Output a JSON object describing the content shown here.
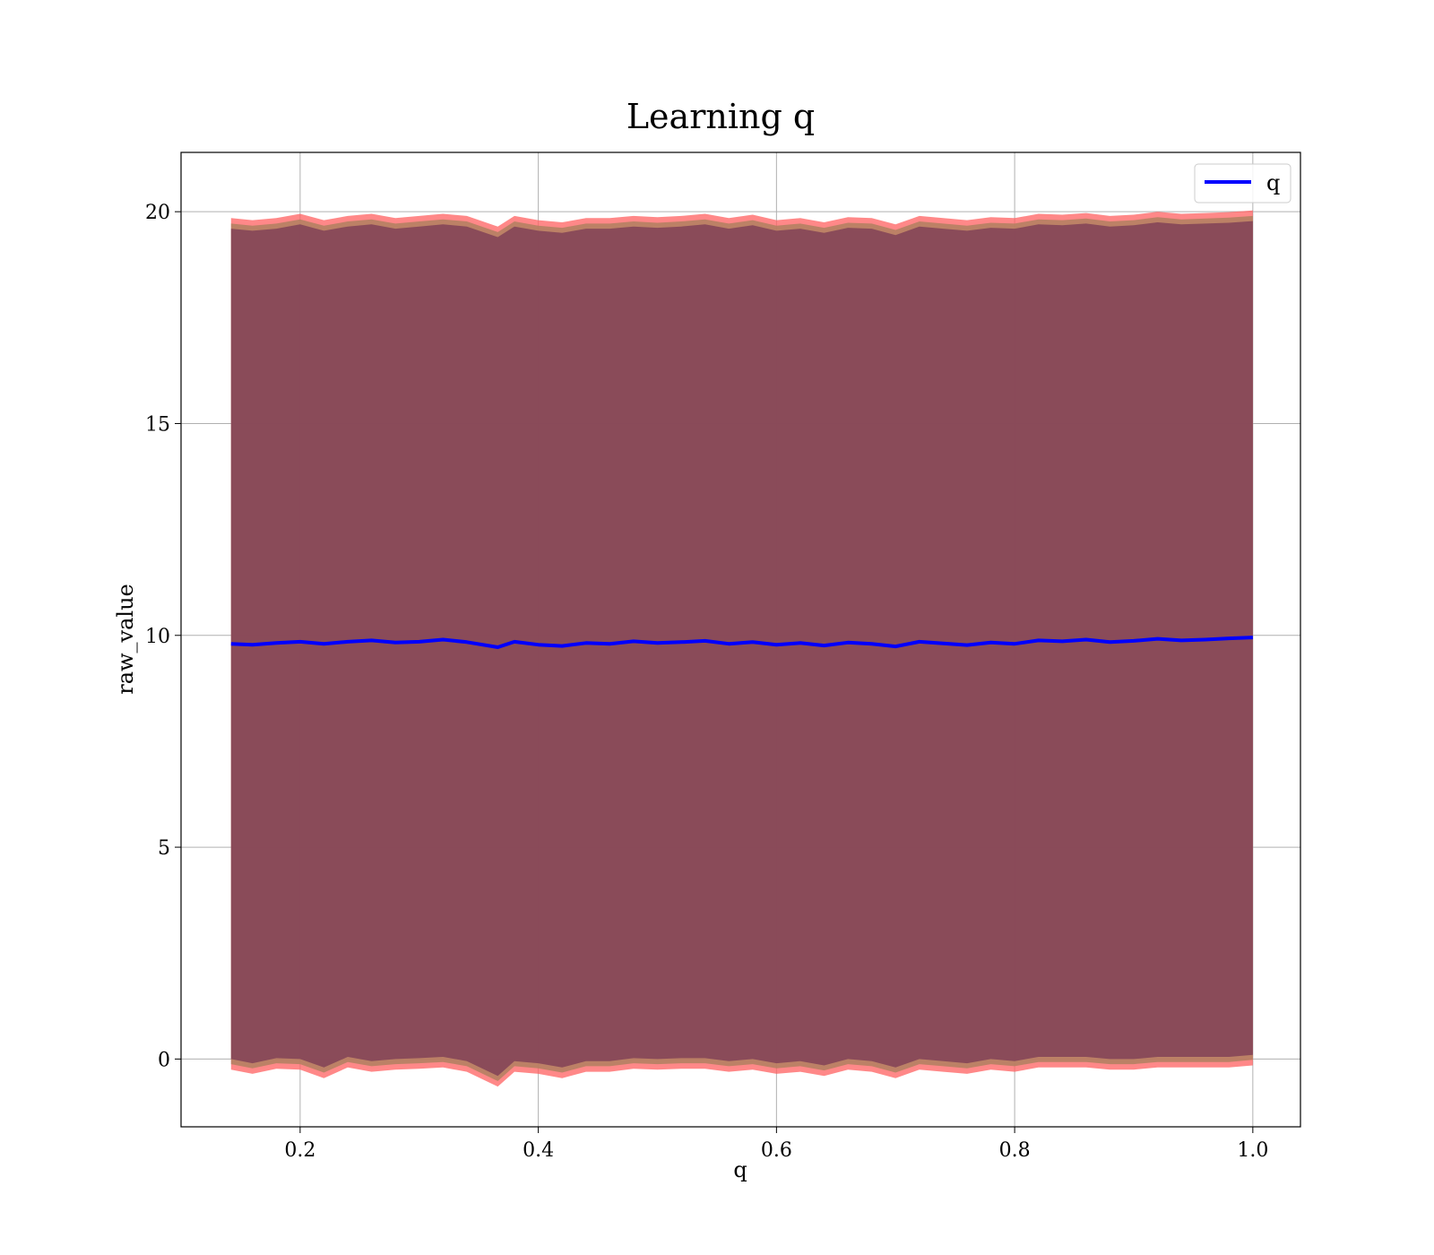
{
  "chart_data": {
    "type": "line",
    "title": "Learning q",
    "xlabel": "q",
    "ylabel": "raw_value",
    "xlim": [
      0.1,
      1.04
    ],
    "ylim": [
      -1.6,
      21.4
    ],
    "xticks": [
      0.2,
      0.4,
      0.6,
      0.8,
      1.0
    ],
    "xtick_labels": [
      "0.2",
      "0.4",
      "0.6",
      "0.8",
      "1.0"
    ],
    "yticks": [
      0,
      5,
      10,
      15,
      20
    ],
    "ytick_labels": [
      "0",
      "5",
      "10",
      "15",
      "20"
    ],
    "grid": true,
    "legend_position": "top-right",
    "colors": {
      "line": "#0000ff",
      "band_outer": "#ff6060",
      "band_middle": "#b08060",
      "band_inner": "#7a3a55",
      "grid": "#b0b0b0"
    },
    "series": [
      {
        "name": "q",
        "x": [
          0.142,
          0.16,
          0.18,
          0.2,
          0.22,
          0.24,
          0.26,
          0.28,
          0.3,
          0.32,
          0.34,
          0.366,
          0.38,
          0.4,
          0.42,
          0.44,
          0.46,
          0.48,
          0.5,
          0.52,
          0.54,
          0.56,
          0.58,
          0.6,
          0.62,
          0.64,
          0.66,
          0.68,
          0.7,
          0.72,
          0.74,
          0.76,
          0.78,
          0.8,
          0.82,
          0.84,
          0.86,
          0.88,
          0.9,
          0.92,
          0.94,
          0.96,
          0.98,
          1.0
        ],
        "y": [
          9.8,
          9.78,
          9.82,
          9.85,
          9.8,
          9.85,
          9.88,
          9.83,
          9.85,
          9.9,
          9.84,
          9.72,
          9.85,
          9.78,
          9.75,
          9.82,
          9.8,
          9.86,
          9.82,
          9.84,
          9.87,
          9.8,
          9.84,
          9.78,
          9.82,
          9.76,
          9.83,
          9.8,
          9.74,
          9.85,
          9.81,
          9.77,
          9.83,
          9.8,
          9.88,
          9.86,
          9.9,
          9.84,
          9.87,
          9.92,
          9.88,
          9.9,
          9.93,
          9.95
        ],
        "y_lower": [
          0.0,
          -0.1,
          0.02,
          0.0,
          -0.2,
          0.05,
          -0.05,
          0.0,
          0.02,
          0.05,
          -0.05,
          -0.4,
          -0.05,
          -0.1,
          -0.2,
          -0.05,
          -0.05,
          0.02,
          0.0,
          0.02,
          0.02,
          -0.05,
          0.0,
          -0.1,
          -0.05,
          -0.15,
          0.0,
          -0.05,
          -0.2,
          0.0,
          -0.05,
          -0.1,
          0.0,
          -0.05,
          0.05,
          0.05,
          0.05,
          0.0,
          0.0,
          0.05,
          0.05,
          0.05,
          0.05,
          0.1
        ],
        "y_upper": [
          19.6,
          19.55,
          19.6,
          19.7,
          19.55,
          19.65,
          19.7,
          19.6,
          19.65,
          19.7,
          19.65,
          19.4,
          19.65,
          19.55,
          19.5,
          19.6,
          19.6,
          19.65,
          19.62,
          19.65,
          19.7,
          19.6,
          19.68,
          19.55,
          19.6,
          19.5,
          19.62,
          19.6,
          19.45,
          19.65,
          19.6,
          19.55,
          19.62,
          19.6,
          19.7,
          19.68,
          19.72,
          19.65,
          19.68,
          19.75,
          19.7,
          19.72,
          19.74,
          19.78
        ]
      }
    ]
  }
}
